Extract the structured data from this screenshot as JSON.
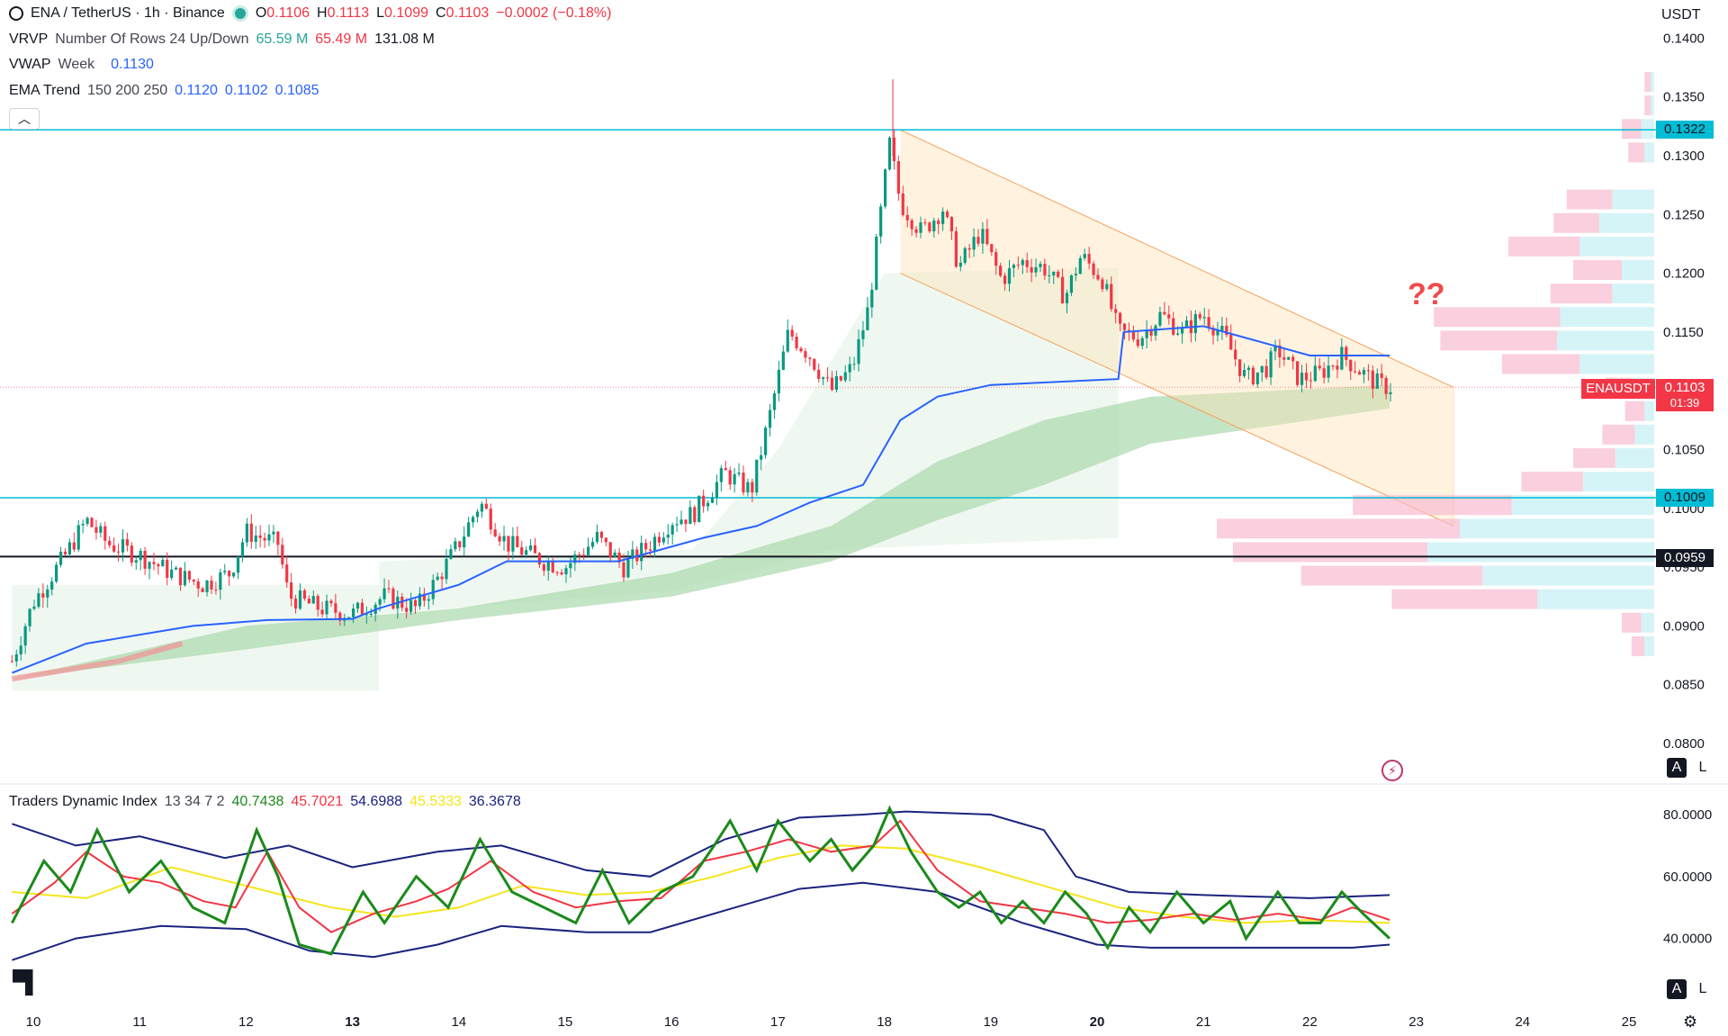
{
  "header": {
    "symbol": "ENA / TetherUS · 1h · Binance",
    "o_label": "O",
    "o": "0.1106",
    "h_label": "H",
    "h": "0.1113",
    "l_label": "L",
    "l": "0.1099",
    "c_label": "C",
    "c": "0.1103",
    "change": "−0.0002 (−0.18%)",
    "currency": "USDT"
  },
  "indicators": {
    "vrvp": {
      "name": "VRVP",
      "params": "Number Of Rows 24 Up/Down",
      "v1": "65.59 M",
      "v2": "65.49 M",
      "v3": "131.08 M"
    },
    "vwap": {
      "name": "VWAP",
      "params": "Week",
      "v1": "0.1130"
    },
    "ema": {
      "name": "EMA Trend",
      "params": "150 200 250",
      "v1": "0.1120",
      "v2": "0.1102",
      "v3": "0.1085"
    },
    "tdi": {
      "name": "Traders Dynamic Index",
      "params": "13 34 7 2",
      "v1": "40.7438",
      "v2": "45.7021",
      "v3": "54.6988",
      "v4": "45.5333",
      "v5": "36.3678"
    }
  },
  "price_axis": {
    "labels": [
      "0.1400",
      "0.1350",
      "0.1300",
      "0.1250",
      "0.1200",
      "0.1150",
      "0.1050",
      "0.1000",
      "0.0950",
      "0.0900",
      "0.0850",
      "0.0800"
    ],
    "values": [
      0.14,
      0.135,
      0.13,
      0.125,
      0.12,
      0.115,
      0.105,
      0.1,
      0.095,
      0.09,
      0.085,
      0.08
    ]
  },
  "levels": [
    {
      "label": "0.1322",
      "value": 0.1322,
      "color": "#00bcd4"
    },
    {
      "label": "0.1009",
      "value": 0.1009,
      "color": "#00bcd4"
    },
    {
      "label": "0.0959",
      "value": 0.0959,
      "color": "#131722"
    }
  ],
  "last_price": {
    "symbol": "ENAUSDT",
    "price": "0.1103",
    "countdown": "01:39",
    "color": "#f23645"
  },
  "annotation": "??",
  "tdi_axis": {
    "labels": [
      "80.0000",
      "60.0000",
      "40.0000"
    ],
    "values": [
      80,
      60,
      40
    ]
  },
  "time_axis": {
    "labels": [
      "10",
      "11",
      "12",
      "13",
      "14",
      "15",
      "16",
      "17",
      "18",
      "19",
      "20",
      "21",
      "22",
      "23",
      "24",
      "25"
    ],
    "bold": [
      "13",
      "20"
    ]
  },
  "scale_buttons": {
    "auto": "A",
    "log": "L"
  },
  "colors": {
    "up": "#089981",
    "down": "#f23645",
    "vwap": "#2962ff",
    "ema_fill": "#a5d6a7",
    "channel": "#ffe0b2",
    "tdi_green": "#1b8a1b",
    "tdi_red": "#f23645",
    "tdi_yellow": "#f5e51b",
    "tdi_band": "#1a237e"
  },
  "chart_data": {
    "type": "candlestick",
    "symbol": "ENA / TetherUS",
    "interval": "1h",
    "ylim": [
      0.08,
      0.14
    ],
    "x_days": [
      10,
      11,
      12,
      13,
      14,
      15,
      16,
      17,
      18,
      19,
      20,
      21,
      22,
      23,
      24,
      25
    ],
    "close_path": [
      [
        9.8,
        0.087
      ],
      [
        10.0,
        0.092
      ],
      [
        10.3,
        0.096
      ],
      [
        10.5,
        0.099
      ],
      [
        10.7,
        0.097
      ],
      [
        11.0,
        0.096
      ],
      [
        11.3,
        0.0945
      ],
      [
        11.6,
        0.0935
      ],
      [
        11.85,
        0.0945
      ],
      [
        12.0,
        0.098
      ],
      [
        12.3,
        0.097
      ],
      [
        12.4,
        0.0925
      ],
      [
        12.7,
        0.0915
      ],
      [
        13.0,
        0.091
      ],
      [
        13.3,
        0.0925
      ],
      [
        13.6,
        0.0915
      ],
      [
        13.8,
        0.094
      ],
      [
        14.0,
        0.097
      ],
      [
        14.2,
        0.1005
      ],
      [
        14.45,
        0.097
      ],
      [
        14.8,
        0.0955
      ],
      [
        15.0,
        0.095
      ],
      [
        15.3,
        0.0975
      ],
      [
        15.55,
        0.095
      ],
      [
        15.8,
        0.097
      ],
      [
        16.0,
        0.099
      ],
      [
        16.2,
        0.0995
      ],
      [
        16.5,
        0.103
      ],
      [
        16.75,
        0.1015
      ],
      [
        16.9,
        0.107
      ],
      [
        17.1,
        0.115
      ],
      [
        17.3,
        0.113
      ],
      [
        17.5,
        0.11
      ],
      [
        17.7,
        0.112
      ],
      [
        17.85,
        0.117
      ],
      [
        17.95,
        0.124
      ],
      [
        18.05,
        0.131
      ],
      [
        18.15,
        0.126
      ],
      [
        18.35,
        0.1235
      ],
      [
        18.55,
        0.1255
      ],
      [
        18.7,
        0.1205
      ],
      [
        18.9,
        0.1235
      ],
      [
        19.1,
        0.1195
      ],
      [
        19.3,
        0.121
      ],
      [
        19.5,
        0.1205
      ],
      [
        19.7,
        0.118
      ],
      [
        19.85,
        0.1215
      ],
      [
        20.05,
        0.1195
      ],
      [
        20.2,
        0.115
      ],
      [
        20.4,
        0.1145
      ],
      [
        20.6,
        0.1165
      ],
      [
        20.8,
        0.115
      ],
      [
        21.0,
        0.1165
      ],
      [
        21.2,
        0.1145
      ],
      [
        21.4,
        0.111
      ],
      [
        21.6,
        0.112
      ],
      [
        21.7,
        0.1135
      ],
      [
        21.9,
        0.111
      ],
      [
        22.1,
        0.1115
      ],
      [
        22.3,
        0.113
      ],
      [
        22.5,
        0.1115
      ],
      [
        22.65,
        0.1105
      ],
      [
        22.75,
        0.1103
      ]
    ],
    "vwap_path": [
      [
        9.8,
        0.086
      ],
      [
        10.5,
        0.0885
      ],
      [
        11.5,
        0.09
      ],
      [
        12.2,
        0.0905
      ],
      [
        13.0,
        0.0906
      ],
      [
        13.25,
        0.0915
      ],
      [
        14.0,
        0.0935
      ],
      [
        14.45,
        0.0955
      ],
      [
        15.5,
        0.0955
      ],
      [
        16.3,
        0.0975
      ],
      [
        16.8,
        0.0985
      ],
      [
        17.3,
        0.1005
      ],
      [
        17.8,
        0.102
      ],
      [
        18.15,
        0.1075
      ],
      [
        18.5,
        0.1095
      ],
      [
        19.0,
        0.1105
      ],
      [
        20.2,
        0.111
      ],
      [
        20.25,
        0.115
      ],
      [
        21.0,
        0.1155
      ],
      [
        22.0,
        0.113
      ],
      [
        22.75,
        0.113
      ]
    ],
    "ema_band": {
      "upper": [
        [
          9.8,
          0.0855
        ],
        [
          12.0,
          0.09
        ],
        [
          14.0,
          0.0915
        ],
        [
          16.0,
          0.0945
        ],
        [
          17.5,
          0.0985
        ],
        [
          18.5,
          0.104
        ],
        [
          19.5,
          0.1075
        ],
        [
          20.5,
          0.1095
        ],
        [
          22.75,
          0.1105
        ]
      ],
      "lower": [
        [
          9.8,
          0.0855
        ],
        [
          12.0,
          0.088
        ],
        [
          14.0,
          0.0905
        ],
        [
          16.0,
          0.0925
        ],
        [
          17.5,
          0.0955
        ],
        [
          18.5,
          0.099
        ],
        [
          19.5,
          0.102
        ],
        [
          20.5,
          0.1055
        ],
        [
          22.75,
          0.1085
        ]
      ]
    },
    "channel": {
      "upper": [
        [
          18.15,
          0.1322
        ],
        [
          23.35,
          0.1103
        ]
      ],
      "lower": [
        [
          18.15,
          0.12
        ],
        [
          23.35,
          0.0985
        ]
      ]
    },
    "horizontal_levels": [
      0.1322,
      0.1009,
      0.0959
    ],
    "volume_profile": [
      {
        "price": 0.1362,
        "up": 1,
        "down": 2
      },
      {
        "price": 0.1342,
        "up": 1,
        "down": 2
      },
      {
        "price": 0.1322,
        "up": 4,
        "down": 6
      },
      {
        "price": 0.1302,
        "up": 3,
        "down": 5
      },
      {
        "price": 0.1262,
        "up": 13,
        "down": 14
      },
      {
        "price": 0.1242,
        "up": 17,
        "down": 14
      },
      {
        "price": 0.1222,
        "up": 23,
        "down": 22
      },
      {
        "price": 0.1202,
        "up": 10,
        "down": 15
      },
      {
        "price": 0.1182,
        "up": 13,
        "down": 19
      },
      {
        "price": 0.1162,
        "up": 29,
        "down": 39
      },
      {
        "price": 0.1142,
        "up": 30,
        "down": 36
      },
      {
        "price": 0.1122,
        "up": 23,
        "down": 24
      },
      {
        "price": 0.1102,
        "up": 7,
        "down": 8
      },
      {
        "price": 0.1082,
        "up": 3,
        "down": 6
      },
      {
        "price": 0.1062,
        "up": 6,
        "down": 10
      },
      {
        "price": 0.1042,
        "up": 12,
        "down": 13
      },
      {
        "price": 0.1022,
        "up": 22,
        "down": 19
      },
      {
        "price": 0.1002,
        "up": 44,
        "down": 49
      },
      {
        "price": 0.0982,
        "up": 60,
        "down": 75
      },
      {
        "price": 0.0962,
        "up": 70,
        "down": 60
      },
      {
        "price": 0.0942,
        "up": 53,
        "down": 56
      },
      {
        "price": 0.0922,
        "up": 36,
        "down": 45
      },
      {
        "price": 0.0902,
        "up": 4,
        "down": 6
      },
      {
        "price": 0.0882,
        "up": 3,
        "down": 4
      }
    ],
    "tdi": {
      "ylim": [
        30,
        90
      ],
      "green": [
        [
          9.8,
          45
        ],
        [
          10.1,
          65
        ],
        [
          10.35,
          55
        ],
        [
          10.6,
          75
        ],
        [
          10.9,
          55
        ],
        [
          11.2,
          65
        ],
        [
          11.5,
          50
        ],
        [
          11.8,
          45
        ],
        [
          12.1,
          75
        ],
        [
          12.3,
          60
        ],
        [
          12.5,
          38
        ],
        [
          12.8,
          35
        ],
        [
          13.1,
          55
        ],
        [
          13.3,
          45
        ],
        [
          13.6,
          60
        ],
        [
          13.9,
          50
        ],
        [
          14.2,
          72
        ],
        [
          14.5,
          55
        ],
        [
          14.8,
          50
        ],
        [
          15.1,
          45
        ],
        [
          15.35,
          62
        ],
        [
          15.6,
          45
        ],
        [
          15.9,
          55
        ],
        [
          16.2,
          60
        ],
        [
          16.4,
          70
        ],
        [
          16.55,
          78
        ],
        [
          16.8,
          62
        ],
        [
          17.0,
          78
        ],
        [
          17.3,
          65
        ],
        [
          17.5,
          72
        ],
        [
          17.7,
          62
        ],
        [
          17.9,
          70
        ],
        [
          18.05,
          82
        ],
        [
          18.25,
          68
        ],
        [
          18.5,
          55
        ],
        [
          18.7,
          50
        ],
        [
          18.9,
          55
        ],
        [
          19.1,
          45
        ],
        [
          19.3,
          52
        ],
        [
          19.5,
          45
        ],
        [
          19.7,
          55
        ],
        [
          19.9,
          48
        ],
        [
          20.1,
          37
        ],
        [
          20.3,
          50
        ],
        [
          20.5,
          42
        ],
        [
          20.75,
          55
        ],
        [
          21.0,
          45
        ],
        [
          21.25,
          52
        ],
        [
          21.4,
          40
        ],
        [
          21.7,
          55
        ],
        [
          21.9,
          45
        ],
        [
          22.1,
          45
        ],
        [
          22.3,
          55
        ],
        [
          22.5,
          48
        ],
        [
          22.75,
          40
        ]
      ],
      "red": [
        [
          9.8,
          48
        ],
        [
          10.2,
          58
        ],
        [
          10.5,
          68
        ],
        [
          10.85,
          60
        ],
        [
          11.2,
          58
        ],
        [
          11.6,
          52
        ],
        [
          11.9,
          50
        ],
        [
          12.2,
          68
        ],
        [
          12.5,
          50
        ],
        [
          12.8,
          42
        ],
        [
          13.2,
          48
        ],
        [
          13.6,
          52
        ],
        [
          13.9,
          56
        ],
        [
          14.3,
          65
        ],
        [
          14.7,
          55
        ],
        [
          15.1,
          50
        ],
        [
          15.5,
          52
        ],
        [
          15.9,
          53
        ],
        [
          16.3,
          65
        ],
        [
          16.7,
          68
        ],
        [
          17.1,
          72
        ],
        [
          17.5,
          68
        ],
        [
          17.9,
          70
        ],
        [
          18.15,
          78
        ],
        [
          18.5,
          62
        ],
        [
          18.9,
          52
        ],
        [
          19.3,
          50
        ],
        [
          19.7,
          48
        ],
        [
          20.1,
          45
        ],
        [
          20.5,
          46
        ],
        [
          20.9,
          48
        ],
        [
          21.3,
          46
        ],
        [
          21.7,
          48
        ],
        [
          22.1,
          46
        ],
        [
          22.4,
          50
        ],
        [
          22.75,
          46
        ]
      ],
      "yellow": [
        [
          9.8,
          55
        ],
        [
          10.5,
          53
        ],
        [
          11.3,
          63
        ],
        [
          12.0,
          57
        ],
        [
          12.8,
          50
        ],
        [
          13.4,
          47
        ],
        [
          14.0,
          50
        ],
        [
          14.6,
          57
        ],
        [
          15.2,
          54
        ],
        [
          15.8,
          55
        ],
        [
          16.4,
          60
        ],
        [
          17.0,
          66
        ],
        [
          17.6,
          70
        ],
        [
          18.2,
          69
        ],
        [
          18.9,
          63
        ],
        [
          19.6,
          56
        ],
        [
          20.2,
          50
        ],
        [
          20.8,
          47
        ],
        [
          21.4,
          45
        ],
        [
          22.0,
          46
        ],
        [
          22.75,
          45
        ]
      ],
      "upper_band": [
        [
          9.8,
          77
        ],
        [
          10.4,
          70
        ],
        [
          11.0,
          73
        ],
        [
          11.8,
          66
        ],
        [
          12.4,
          70
        ],
        [
          13.0,
          63
        ],
        [
          13.8,
          68
        ],
        [
          14.4,
          70
        ],
        [
          15.2,
          62
        ],
        [
          15.8,
          60
        ],
        [
          16.5,
          72
        ],
        [
          17.2,
          79
        ],
        [
          17.8,
          80
        ],
        [
          18.2,
          81
        ],
        [
          19.0,
          80
        ],
        [
          19.5,
          75
        ],
        [
          19.8,
          60
        ],
        [
          20.3,
          55
        ],
        [
          21.0,
          54
        ],
        [
          22.0,
          53
        ],
        [
          22.75,
          54
        ]
      ],
      "lower_band": [
        [
          9.8,
          33
        ],
        [
          10.4,
          40
        ],
        [
          11.2,
          44
        ],
        [
          12.0,
          43
        ],
        [
          12.6,
          36
        ],
        [
          13.2,
          34
        ],
        [
          13.8,
          38
        ],
        [
          14.4,
          44
        ],
        [
          15.2,
          42
        ],
        [
          15.8,
          42
        ],
        [
          16.5,
          49
        ],
        [
          17.2,
          56
        ],
        [
          17.8,
          58
        ],
        [
          18.5,
          55
        ],
        [
          19.3,
          45
        ],
        [
          20.0,
          38
        ],
        [
          20.5,
          37
        ],
        [
          21.5,
          37
        ],
        [
          22.4,
          37
        ],
        [
          22.75,
          38
        ]
      ]
    }
  }
}
